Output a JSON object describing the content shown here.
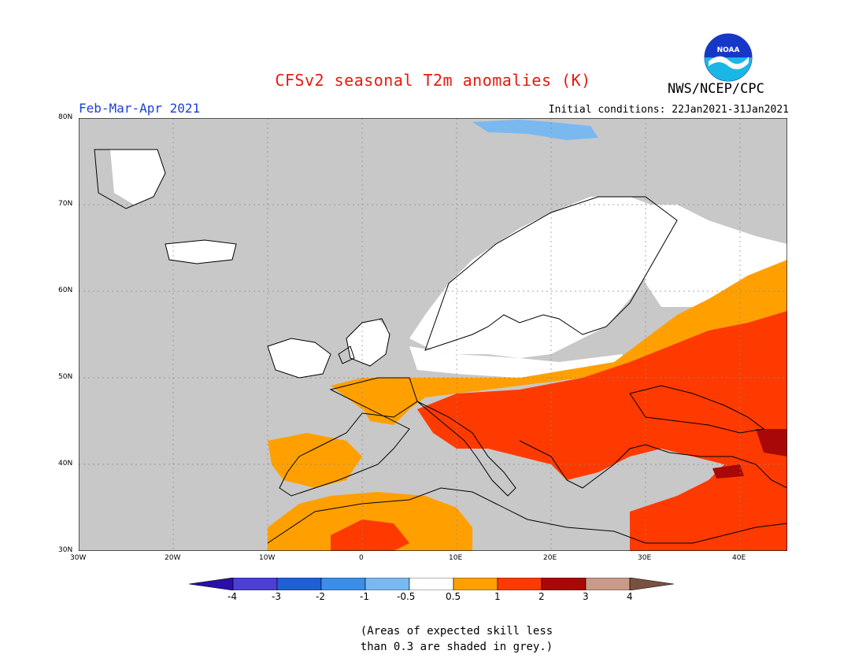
{
  "title": "CFSv2 seasonal T2m anomalies (K)",
  "period": "Feb-Mar-Apr 2021",
  "initial_conditions": "Initial conditions: 22Jan2021-31Jan2021",
  "agency": "NWS/NCEP/CPC",
  "logo_text": "NOAA",
  "map": {
    "lon_range": [
      -30,
      45
    ],
    "lat_range": [
      30,
      80
    ],
    "lat_ticks": [
      "80N",
      "70N",
      "60N",
      "50N",
      "40N",
      "30N"
    ],
    "lon_ticks": [
      "30W",
      "20W",
      "10W",
      "0",
      "10E",
      "20E",
      "30E",
      "40E"
    ],
    "grid": true,
    "low_skill_color": "#c8c8c8",
    "near_normal_color": "#ffffff"
  },
  "colorbar": {
    "labels": [
      "-4",
      "-3",
      "-2",
      "-1",
      "-0.5",
      "0.5",
      "1",
      "2",
      "3",
      "4"
    ],
    "colors": [
      "#2a0fa8",
      "#4b3fd4",
      "#1f5fd6",
      "#3a8ee8",
      "#7ab8f0",
      "#ffffff",
      "#ffa000",
      "#ff3a00",
      "#a80808",
      "#c89a88",
      "#7a5040"
    ]
  },
  "note": [
    "(Areas of expected skill less",
    "than 0.3 are shaded in grey.)"
  ]
}
